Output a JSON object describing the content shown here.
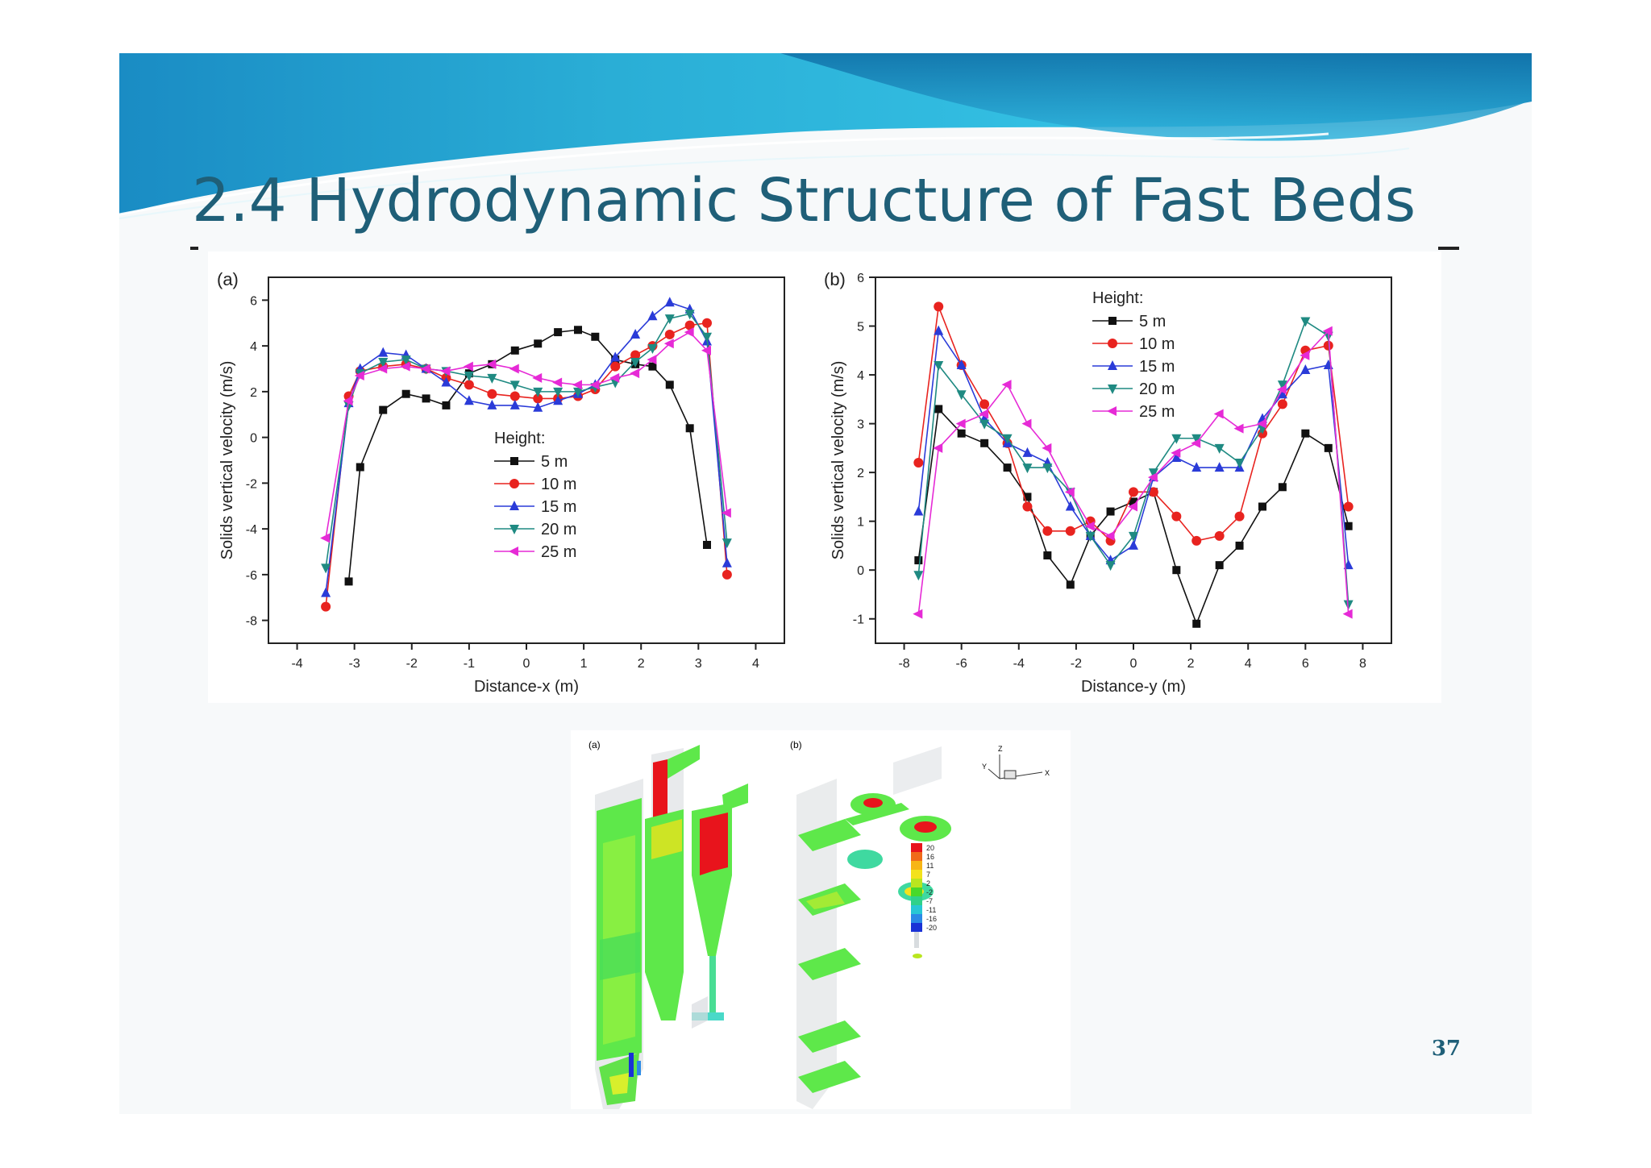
{
  "slide": {
    "title": "2.4 Hydrodynamic Structure of Fast Beds",
    "page_number": "37",
    "colors": {
      "title": "#1f5f78",
      "banner_dark": "#1a7fb0",
      "banner_light": "#4fd0ea"
    }
  },
  "chart_data": [
    {
      "type": "line",
      "panel_label": "(a)",
      "xlabel": "Distance-x (m)",
      "ylabel": "Solids vertical velocity (m/s)",
      "xlim": [
        -4.5,
        4.5
      ],
      "ylim": [
        -9,
        7
      ],
      "xticks": [
        -4,
        -3,
        -2,
        -1,
        0,
        1,
        2,
        3,
        4
      ],
      "yticks": [
        -8,
        -6,
        -4,
        -2,
        0,
        2,
        4,
        6
      ],
      "legend_title": "Height:",
      "legend_position": "center",
      "x": [
        -3.5,
        -3.1,
        -2.9,
        -2.5,
        -2.1,
        -1.75,
        -1.4,
        -1.0,
        -0.6,
        -0.2,
        0.2,
        0.55,
        0.9,
        1.2,
        1.55,
        1.9,
        2.2,
        2.5,
        2.85,
        3.15,
        3.5
      ],
      "series": [
        {
          "name": "5 m",
          "color": "#111111",
          "marker": "square",
          "values": [
            null,
            -6.3,
            -1.3,
            1.2,
            1.9,
            1.7,
            1.4,
            2.8,
            3.2,
            3.8,
            4.1,
            4.6,
            4.7,
            4.4,
            3.4,
            3.2,
            3.1,
            2.3,
            0.4,
            -4.7,
            null
          ]
        },
        {
          "name": "10 m",
          "color": "#e8231f",
          "marker": "circle",
          "values": [
            -7.4,
            1.8,
            2.9,
            3.1,
            3.2,
            3.0,
            2.6,
            2.3,
            1.9,
            1.8,
            1.7,
            1.7,
            1.8,
            2.1,
            3.1,
            3.6,
            4.0,
            4.5,
            4.9,
            5.0,
            -6.0
          ]
        },
        {
          "name": "15 m",
          "color": "#2a3bd8",
          "marker": "triangle-up",
          "values": [
            -6.8,
            1.5,
            3.0,
            3.7,
            3.6,
            3.0,
            2.4,
            1.6,
            1.4,
            1.4,
            1.3,
            1.6,
            1.9,
            2.3,
            3.5,
            4.5,
            5.3,
            5.9,
            5.6,
            4.2,
            -5.5
          ]
        },
        {
          "name": "20 m",
          "color": "#1f8a82",
          "marker": "triangle-down",
          "values": [
            -5.7,
            1.4,
            2.8,
            3.3,
            3.4,
            3.0,
            2.9,
            2.7,
            2.6,
            2.3,
            2.0,
            2.0,
            2.0,
            2.2,
            2.4,
            3.3,
            3.9,
            5.2,
            5.4,
            4.4,
            -4.6
          ]
        },
        {
          "name": "25 m",
          "color": "#e62ad6",
          "marker": "triangle-left",
          "values": [
            -4.4,
            1.6,
            2.7,
            3.0,
            3.1,
            3.0,
            2.9,
            3.1,
            3.2,
            3.0,
            2.6,
            2.4,
            2.3,
            2.3,
            2.6,
            2.8,
            3.4,
            4.1,
            4.6,
            3.8,
            -3.3
          ]
        }
      ]
    },
    {
      "type": "line",
      "panel_label": "(b)",
      "xlabel": "Distance-y (m)",
      "ylabel": "Solids vertical velocity (m/s)",
      "xlim": [
        -9,
        9
      ],
      "ylim": [
        -1.5,
        6
      ],
      "xticks": [
        -8,
        -6,
        -4,
        -2,
        0,
        2,
        4,
        6,
        8
      ],
      "yticks": [
        -1,
        0,
        1,
        2,
        3,
        4,
        5,
        6
      ],
      "legend_title": "Height:",
      "legend_position": "top-center",
      "x": [
        -7.5,
        -6.8,
        -6.0,
        -5.2,
        -4.4,
        -3.7,
        -3.0,
        -2.2,
        -1.5,
        -0.8,
        0,
        0.7,
        1.5,
        2.2,
        3.0,
        3.7,
        4.5,
        5.2,
        6.0,
        6.8,
        7.5
      ],
      "series": [
        {
          "name": "5 m",
          "color": "#111111",
          "marker": "square",
          "values": [
            0.2,
            3.3,
            2.8,
            2.6,
            2.1,
            1.5,
            0.3,
            -0.3,
            0.7,
            1.2,
            1.4,
            1.6,
            0.0,
            -1.1,
            0.1,
            0.5,
            1.3,
            1.7,
            2.8,
            2.5,
            0.9
          ]
        },
        {
          "name": "10 m",
          "color": "#e8231f",
          "marker": "circle",
          "values": [
            2.2,
            5.4,
            4.2,
            3.4,
            2.6,
            1.3,
            0.8,
            0.8,
            1.0,
            0.6,
            1.6,
            1.6,
            1.1,
            0.6,
            0.7,
            1.1,
            2.8,
            3.4,
            4.5,
            4.6,
            1.3
          ]
        },
        {
          "name": "15 m",
          "color": "#2a3bd8",
          "marker": "triangle-up",
          "values": [
            1.2,
            4.9,
            4.2,
            3.1,
            2.6,
            2.4,
            2.2,
            1.3,
            0.7,
            0.2,
            0.5,
            1.9,
            2.3,
            2.1,
            2.1,
            2.1,
            3.1,
            3.6,
            4.1,
            4.2,
            0.1
          ]
        },
        {
          "name": "20 m",
          "color": "#1f8a82",
          "marker": "triangle-down",
          "values": [
            -0.1,
            4.2,
            3.6,
            3.0,
            2.7,
            2.1,
            2.1,
            1.6,
            0.7,
            0.1,
            0.7,
            2.0,
            2.7,
            2.7,
            2.5,
            2.2,
            2.9,
            3.8,
            5.1,
            4.8,
            -0.7
          ]
        },
        {
          "name": "25 m",
          "color": "#e62ad6",
          "marker": "triangle-left",
          "values": [
            -0.9,
            2.5,
            3.0,
            3.2,
            3.8,
            3.0,
            2.5,
            1.6,
            0.9,
            0.7,
            1.3,
            1.9,
            2.4,
            2.6,
            3.2,
            2.9,
            3.0,
            3.7,
            4.4,
            4.9,
            -0.9
          ]
        }
      ]
    }
  ],
  "cfd_figure": {
    "panel_a_label": "(a)",
    "panel_b_label": "(b)",
    "axis_labels": {
      "z": "Z",
      "y": "Y",
      "x": "X"
    },
    "colorbar_labels": [
      "20",
      "16",
      "11",
      "7",
      "2",
      "-2",
      "-7",
      "-11",
      "-16",
      "-20"
    ],
    "colorbar_colors": [
      "#e8141c",
      "#f06a1a",
      "#f7b516",
      "#f3e21c",
      "#b9e61f",
      "#48d92a",
      "#2fd18a",
      "#27c7d5",
      "#2a8ae6",
      "#1a32d6"
    ]
  }
}
